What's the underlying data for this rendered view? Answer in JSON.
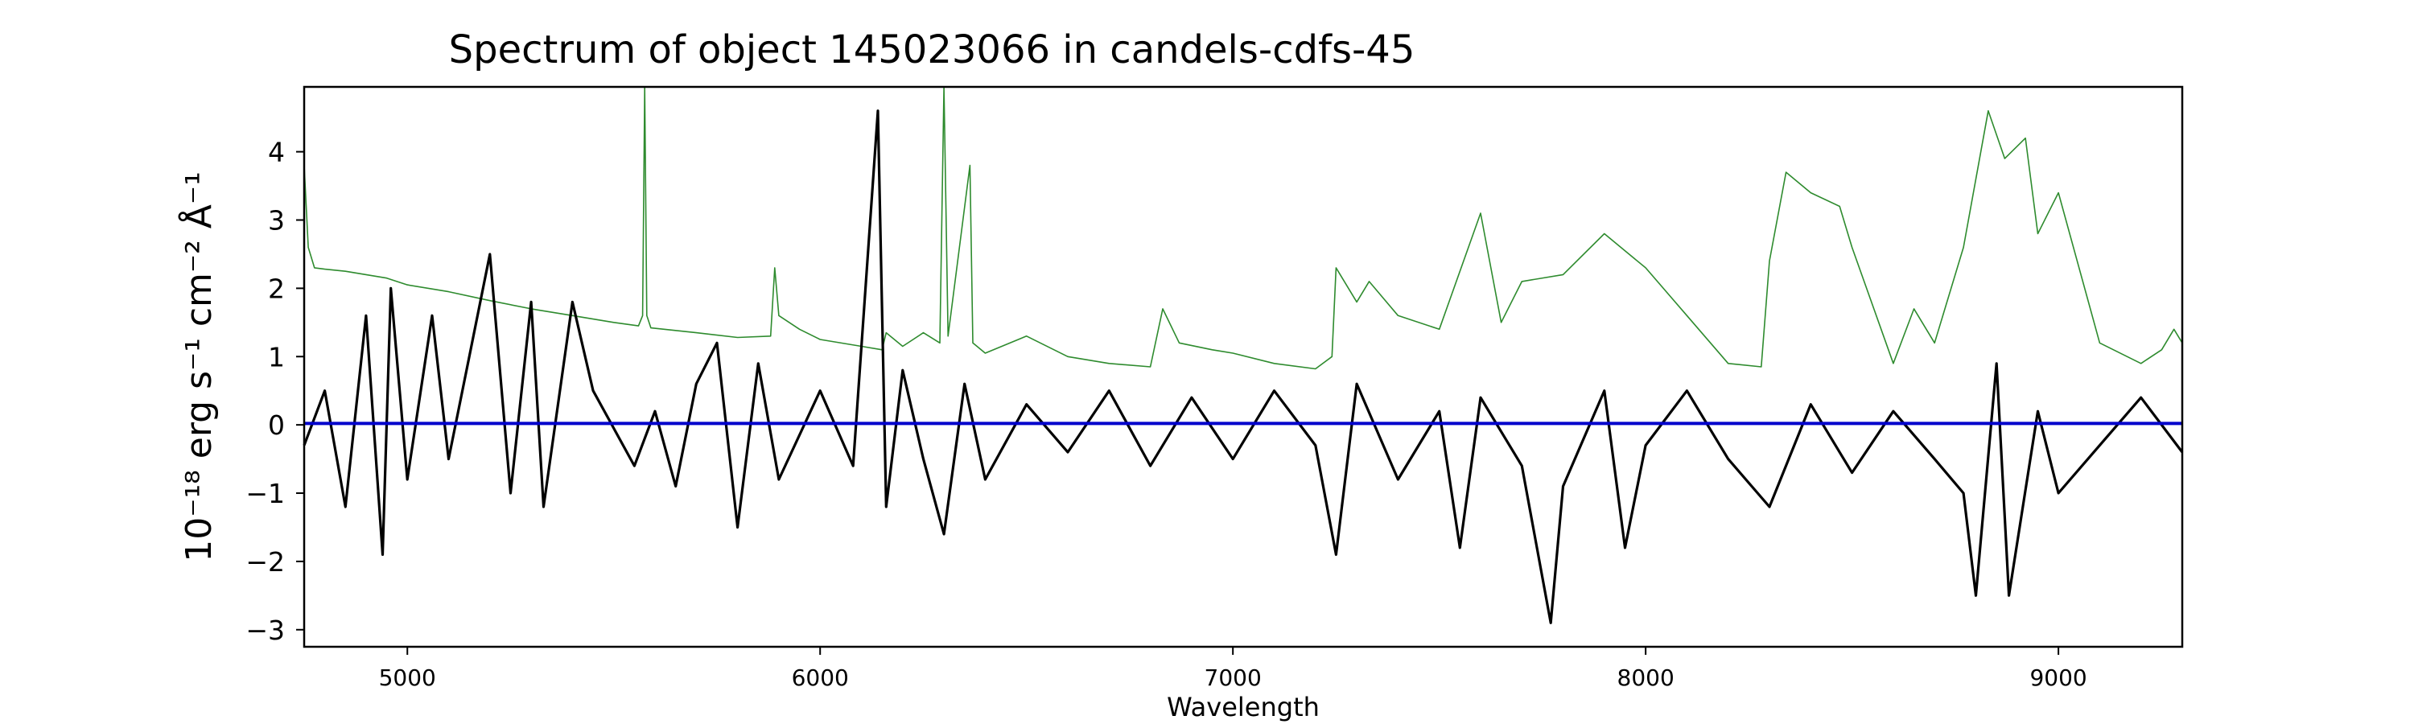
{
  "chart_data": {
    "type": "line",
    "title": "Spectrum of object 145023066 in candels-cdfs-45",
    "xlabel": "Wavelength",
    "ylabel": "10⁻¹⁸ erg s⁻¹ cm⁻² Å⁻¹",
    "xlim": [
      4750,
      9300
    ],
    "ylim": [
      -3.25,
      4.95
    ],
    "xticks": [
      5000,
      6000,
      7000,
      8000,
      9000
    ],
    "yticks": [
      -3,
      -2,
      -1,
      0,
      1,
      2,
      3,
      4
    ],
    "grid": false,
    "legend": "none",
    "series": [
      {
        "role": "sky",
        "color": "#2e8b2e",
        "points": [
          [
            4750,
            3.8
          ],
          [
            4760,
            2.6
          ],
          [
            4775,
            2.3
          ],
          [
            4800,
            2.28
          ],
          [
            4850,
            2.25
          ],
          [
            4900,
            2.2
          ],
          [
            4950,
            2.15
          ],
          [
            5000,
            2.05
          ],
          [
            5100,
            1.95
          ],
          [
            5200,
            1.82
          ],
          [
            5300,
            1.7
          ],
          [
            5400,
            1.6
          ],
          [
            5500,
            1.5
          ],
          [
            5560,
            1.45
          ],
          [
            5570,
            1.6
          ],
          [
            5575,
            4.95
          ],
          [
            5580,
            1.6
          ],
          [
            5590,
            1.42
          ],
          [
            5700,
            1.35
          ],
          [
            5800,
            1.28
          ],
          [
            5880,
            1.3
          ],
          [
            5890,
            2.3
          ],
          [
            5900,
            1.6
          ],
          [
            5950,
            1.4
          ],
          [
            6000,
            1.25
          ],
          [
            6100,
            1.15
          ],
          [
            6150,
            1.1
          ],
          [
            6160,
            1.35
          ],
          [
            6200,
            1.15
          ],
          [
            6250,
            1.35
          ],
          [
            6290,
            1.2
          ],
          [
            6300,
            4.95
          ],
          [
            6310,
            1.3
          ],
          [
            6363,
            3.8
          ],
          [
            6370,
            1.2
          ],
          [
            6400,
            1.05
          ],
          [
            6500,
            1.3
          ],
          [
            6600,
            1.0
          ],
          [
            6700,
            0.9
          ],
          [
            6800,
            0.85
          ],
          [
            6830,
            1.7
          ],
          [
            6870,
            1.2
          ],
          [
            6950,
            1.1
          ],
          [
            7000,
            1.05
          ],
          [
            7100,
            0.9
          ],
          [
            7200,
            0.82
          ],
          [
            7240,
            1.0
          ],
          [
            7250,
            2.3
          ],
          [
            7300,
            1.8
          ],
          [
            7330,
            2.1
          ],
          [
            7400,
            1.6
          ],
          [
            7500,
            1.4
          ],
          [
            7600,
            3.1
          ],
          [
            7650,
            1.5
          ],
          [
            7700,
            2.1
          ],
          [
            7800,
            2.2
          ],
          [
            7900,
            2.8
          ],
          [
            7960,
            2.5
          ],
          [
            8000,
            2.3
          ],
          [
            8100,
            1.6
          ],
          [
            8200,
            0.9
          ],
          [
            8280,
            0.85
          ],
          [
            8300,
            2.4
          ],
          [
            8340,
            3.7
          ],
          [
            8400,
            3.4
          ],
          [
            8470,
            3.2
          ],
          [
            8500,
            2.6
          ],
          [
            8600,
            0.9
          ],
          [
            8650,
            1.7
          ],
          [
            8700,
            1.2
          ],
          [
            8770,
            2.6
          ],
          [
            8830,
            4.6
          ],
          [
            8870,
            3.9
          ],
          [
            8920,
            4.2
          ],
          [
            8950,
            2.8
          ],
          [
            9000,
            3.4
          ],
          [
            9100,
            1.2
          ],
          [
            9200,
            0.9
          ],
          [
            9250,
            1.1
          ],
          [
            9280,
            1.4
          ],
          [
            9300,
            1.2
          ]
        ]
      },
      {
        "role": "flux",
        "color": "#000000",
        "points": [
          [
            4750,
            -0.3
          ],
          [
            4800,
            0.5
          ],
          [
            4850,
            -1.2
          ],
          [
            4900,
            1.6
          ],
          [
            4940,
            -1.9
          ],
          [
            4960,
            2.0
          ],
          [
            5000,
            -0.8
          ],
          [
            5060,
            1.6
          ],
          [
            5100,
            -0.5
          ],
          [
            5150,
            1.0
          ],
          [
            5200,
            2.5
          ],
          [
            5250,
            -1.0
          ],
          [
            5300,
            1.8
          ],
          [
            5330,
            -1.2
          ],
          [
            5400,
            1.8
          ],
          [
            5450,
            0.5
          ],
          [
            5550,
            -0.6
          ],
          [
            5600,
            0.2
          ],
          [
            5650,
            -0.9
          ],
          [
            5700,
            0.6
          ],
          [
            5750,
            1.2
          ],
          [
            5800,
            -1.5
          ],
          [
            5850,
            0.9
          ],
          [
            5900,
            -0.8
          ],
          [
            6000,
            0.5
          ],
          [
            6080,
            -0.6
          ],
          [
            6140,
            4.6
          ],
          [
            6160,
            -1.2
          ],
          [
            6200,
            0.8
          ],
          [
            6250,
            -0.5
          ],
          [
            6300,
            -1.6
          ],
          [
            6350,
            0.6
          ],
          [
            6400,
            -0.8
          ],
          [
            6500,
            0.3
          ],
          [
            6600,
            -0.4
          ],
          [
            6700,
            0.5
          ],
          [
            6800,
            -0.6
          ],
          [
            6900,
            0.4
          ],
          [
            7000,
            -0.5
          ],
          [
            7100,
            0.5
          ],
          [
            7200,
            -0.3
          ],
          [
            7250,
            -1.9
          ],
          [
            7300,
            0.6
          ],
          [
            7400,
            -0.8
          ],
          [
            7500,
            0.2
          ],
          [
            7550,
            -1.8
          ],
          [
            7600,
            0.4
          ],
          [
            7700,
            -0.6
          ],
          [
            7770,
            -2.9
          ],
          [
            7800,
            -0.9
          ],
          [
            7900,
            0.5
          ],
          [
            7950,
            -1.8
          ],
          [
            8000,
            -0.3
          ],
          [
            8100,
            0.5
          ],
          [
            8200,
            -0.5
          ],
          [
            8300,
            -1.2
          ],
          [
            8400,
            0.3
          ],
          [
            8500,
            -0.7
          ],
          [
            8600,
            0.2
          ],
          [
            8700,
            -0.5
          ],
          [
            8770,
            -1.0
          ],
          [
            8800,
            -2.5
          ],
          [
            8850,
            0.9
          ],
          [
            8880,
            -2.5
          ],
          [
            8950,
            0.2
          ],
          [
            9000,
            -1.0
          ],
          [
            9100,
            -0.3
          ],
          [
            9200,
            0.4
          ],
          [
            9300,
            -0.4
          ]
        ]
      },
      {
        "role": "model",
        "color": "#0000cc",
        "points": [
          [
            4750,
            0.02
          ],
          [
            9300,
            0.02
          ]
        ]
      }
    ]
  }
}
